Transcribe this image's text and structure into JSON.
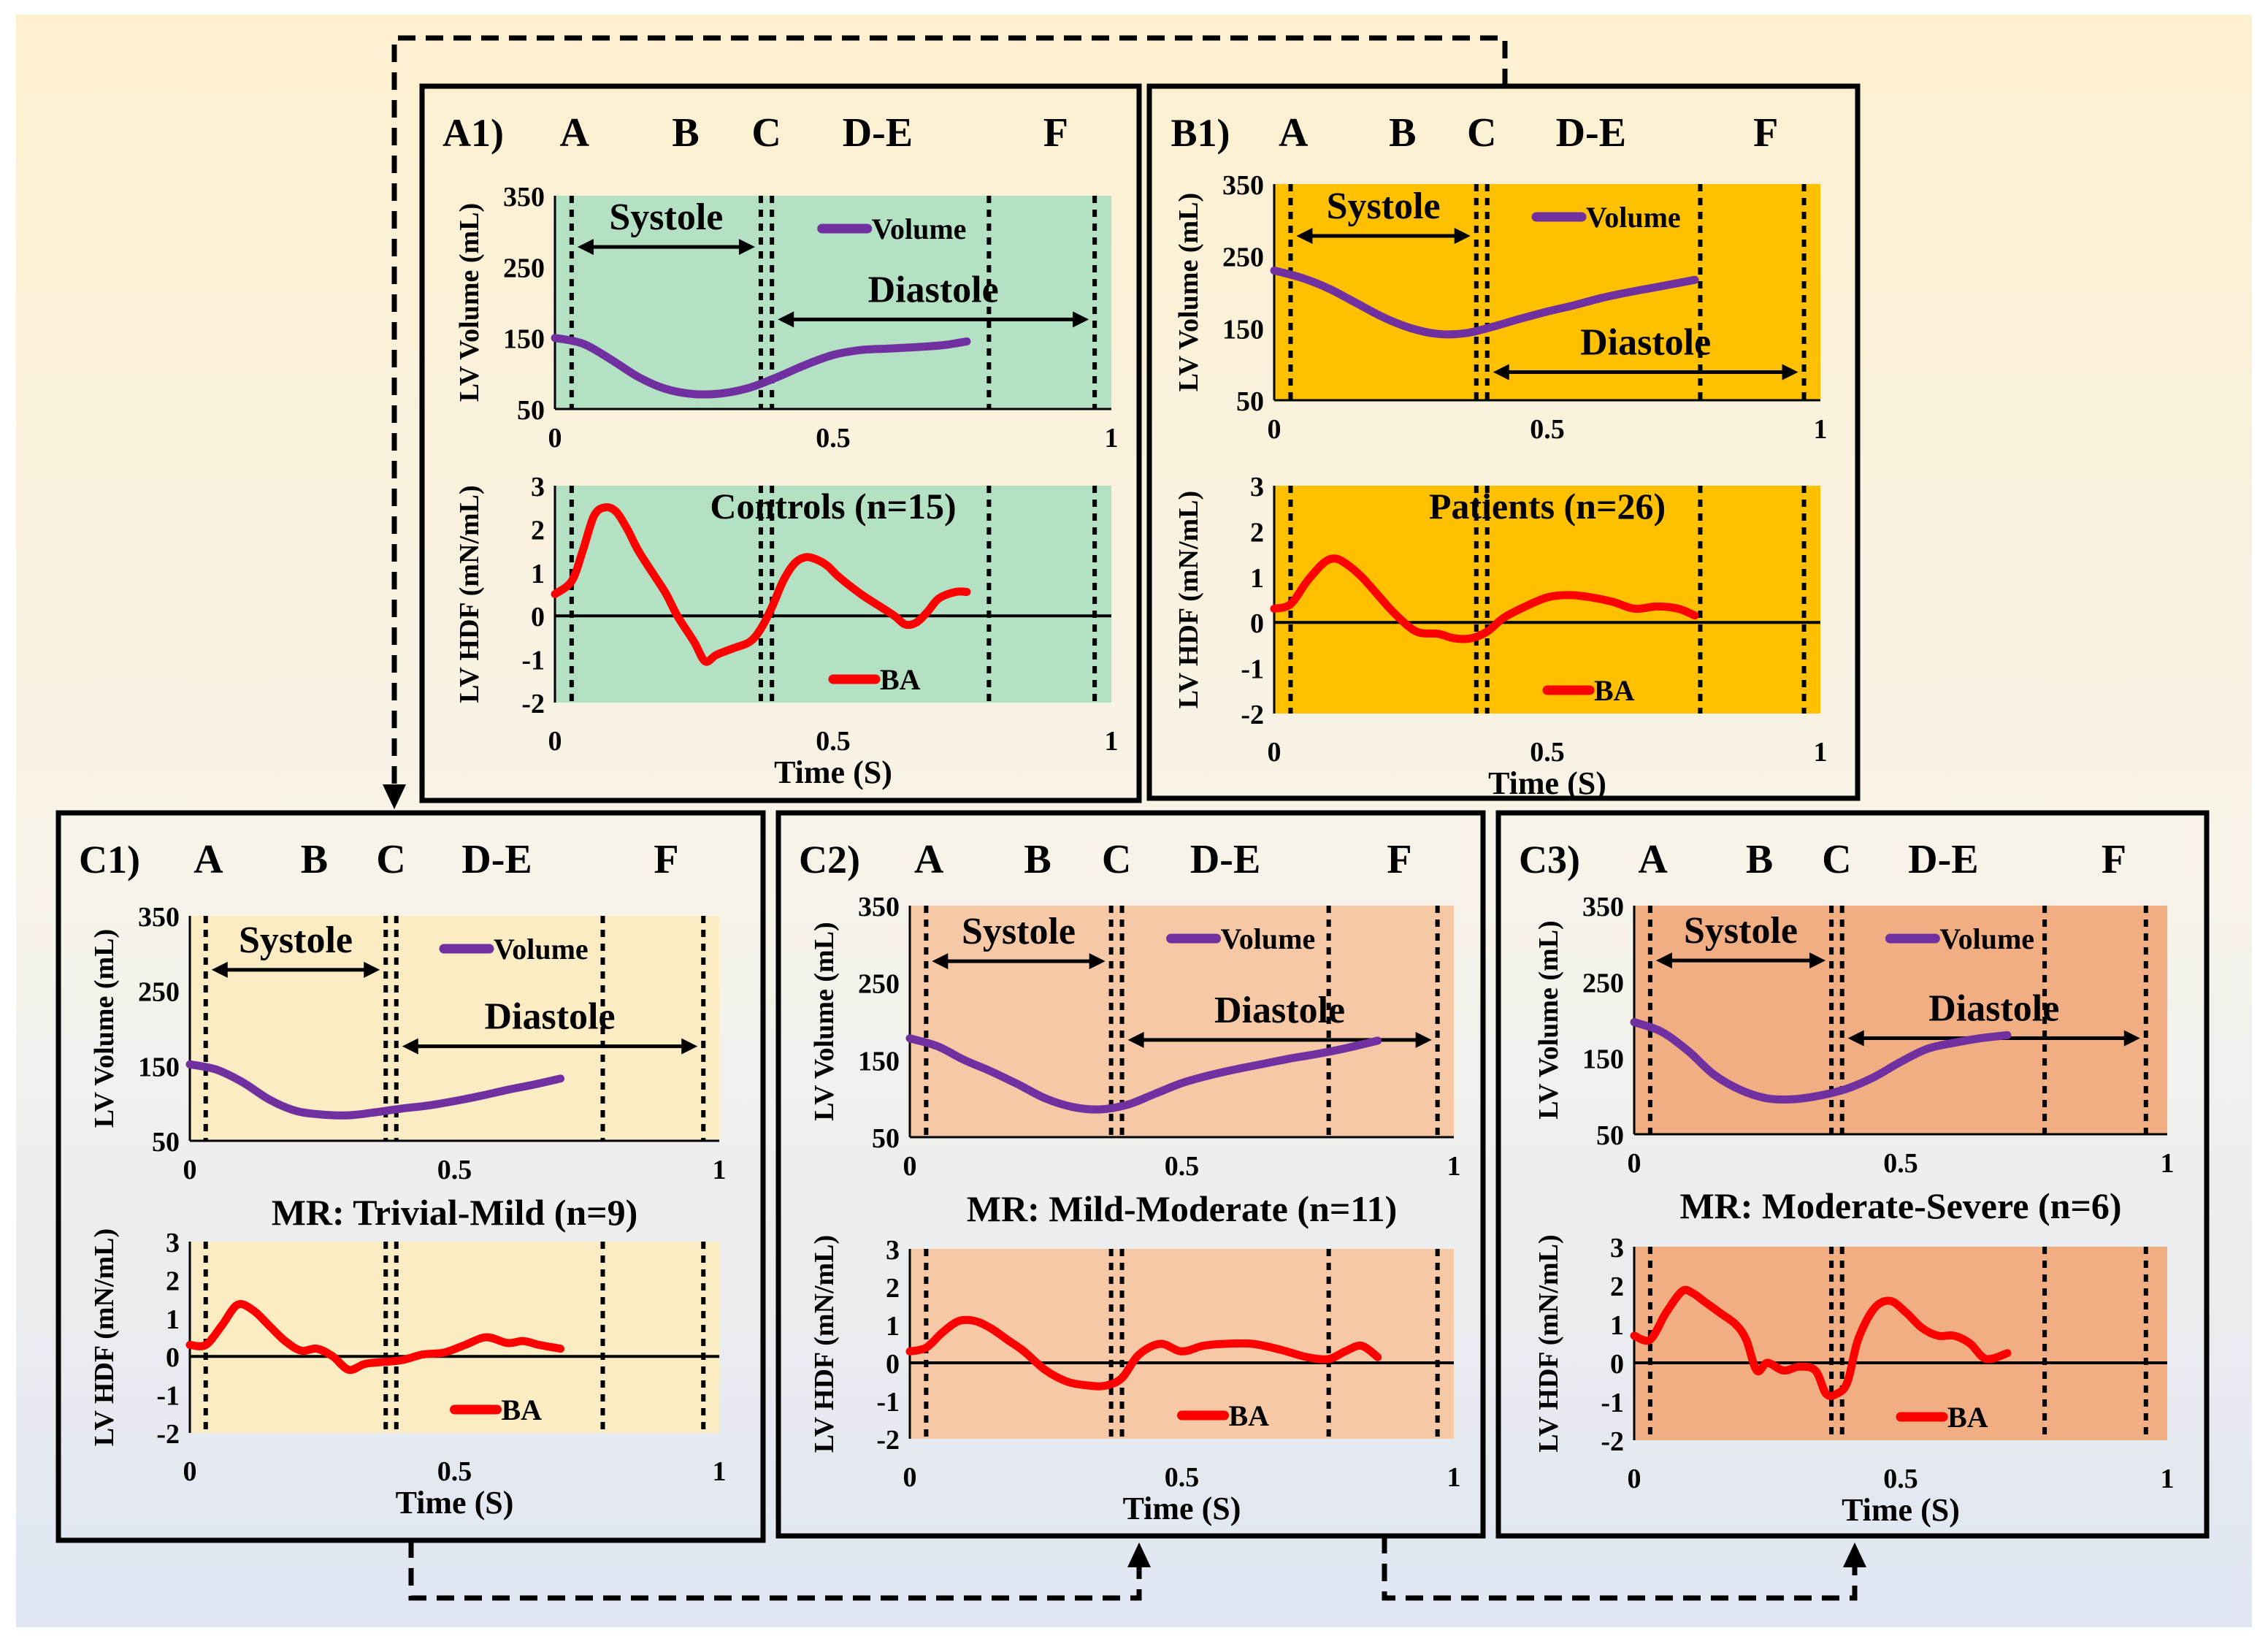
{
  "colors": {
    "bg_top": "#fdf0cf",
    "bg_mid": "#f7f3ea",
    "bg_bottom": "#dfe6f2",
    "volume_line": "#7030a0",
    "hdf_line": "#ff0000",
    "controls_fill": "#b4e0c3",
    "patients_fill": "#ffc000",
    "trivial_fill": "#fcecc4",
    "mild_fill": "#f6c8a6",
    "severe_fill": "#f0ae82"
  },
  "phase_labels": [
    "A",
    "B",
    "C",
    "D-E",
    "F"
  ],
  "common": {
    "volume_ylabel": "LV Volume (mL)",
    "hdf_ylabel": "LV HDF (mN/mL)",
    "xlabel": "Time (S)",
    "systole": "Systole",
    "diastole": "Diastole",
    "volume_legend": "Volume",
    "hdf_legend": "BA",
    "volume_yticks": [
      "350",
      "250",
      "150",
      "50"
    ],
    "hdf_yticks": [
      "3",
      "2",
      "1",
      "0",
      "-1",
      "-2"
    ],
    "xticks": [
      "0",
      "0.5",
      "1"
    ]
  },
  "chart_data": [
    {
      "id": "A1",
      "tag": "A1)",
      "group": "Controls (n=15)",
      "type": "line",
      "fill": "controls_fill",
      "xlim": [
        0,
        1
      ],
      "volume_ylim": [
        50,
        350
      ],
      "hdf_ylim": [
        -2,
        3
      ],
      "phase_lines": [
        0.03,
        0.37,
        0.39,
        0.78,
        0.97
      ],
      "volume": {
        "x": [
          0,
          0.05,
          0.1,
          0.15,
          0.2,
          0.25,
          0.3,
          0.35,
          0.4,
          0.45,
          0.5,
          0.55,
          0.6,
          0.65,
          0.7,
          0.74
        ],
        "y": [
          150,
          142,
          120,
          95,
          78,
          71,
          72,
          80,
          95,
          112,
          126,
          133,
          135,
          137,
          140,
          145
        ]
      },
      "hdf": {
        "x": [
          0,
          0.03,
          0.05,
          0.07,
          0.09,
          0.11,
          0.13,
          0.15,
          0.18,
          0.2,
          0.22,
          0.25,
          0.27,
          0.29,
          0.32,
          0.35,
          0.37,
          0.39,
          0.41,
          0.43,
          0.45,
          0.47,
          0.49,
          0.51,
          0.55,
          0.58,
          0.61,
          0.63,
          0.65,
          0.67,
          0.69,
          0.72,
          0.74
        ],
        "y": [
          0.5,
          0.8,
          1.5,
          2.3,
          2.5,
          2.4,
          2.0,
          1.5,
          0.9,
          0.5,
          0.0,
          -0.6,
          -1.05,
          -0.9,
          -0.75,
          -0.6,
          -0.3,
          0.2,
          0.8,
          1.2,
          1.35,
          1.3,
          1.15,
          0.9,
          0.5,
          0.25,
          0.0,
          -0.2,
          -0.15,
          0.1,
          0.4,
          0.55,
          0.55
        ]
      }
    },
    {
      "id": "B1",
      "tag": "B1)",
      "group": "Patients (n=26)",
      "type": "line",
      "fill": "patients_fill",
      "xlim": [
        0,
        1
      ],
      "volume_ylim": [
        50,
        350
      ],
      "hdf_ylim": [
        -2,
        3
      ],
      "phase_lines": [
        0.03,
        0.37,
        0.39,
        0.78,
        0.97
      ],
      "volume": {
        "x": [
          0,
          0.05,
          0.1,
          0.15,
          0.2,
          0.25,
          0.3,
          0.35,
          0.4,
          0.45,
          0.5,
          0.55,
          0.6,
          0.65,
          0.7,
          0.77
        ],
        "y": [
          230,
          220,
          205,
          185,
          165,
          150,
          142,
          143,
          152,
          163,
          173,
          182,
          192,
          200,
          207,
          217
        ]
      },
      "hdf": {
        "x": [
          0,
          0.03,
          0.06,
          0.09,
          0.11,
          0.13,
          0.16,
          0.19,
          0.22,
          0.26,
          0.3,
          0.33,
          0.36,
          0.39,
          0.42,
          0.46,
          0.5,
          0.54,
          0.58,
          0.62,
          0.66,
          0.7,
          0.74,
          0.77
        ],
        "y": [
          0.3,
          0.4,
          0.9,
          1.3,
          1.4,
          1.3,
          1.0,
          0.6,
          0.2,
          -0.2,
          -0.25,
          -0.35,
          -0.35,
          -0.2,
          0.1,
          0.35,
          0.55,
          0.6,
          0.55,
          0.45,
          0.3,
          0.35,
          0.3,
          0.15
        ]
      }
    },
    {
      "id": "C1",
      "tag": "C1)",
      "group": "MR: Trivial-Mild (n=9)",
      "type": "line",
      "fill": "trivial_fill",
      "xlim": [
        0,
        1
      ],
      "volume_ylim": [
        50,
        350
      ],
      "hdf_ylim": [
        -2,
        3
      ],
      "phase_lines": [
        0.03,
        0.37,
        0.39,
        0.78,
        0.97
      ],
      "volume": {
        "x": [
          0,
          0.05,
          0.1,
          0.15,
          0.2,
          0.25,
          0.3,
          0.35,
          0.4,
          0.45,
          0.5,
          0.55,
          0.6,
          0.65,
          0.7
        ],
        "y": [
          152,
          145,
          128,
          105,
          90,
          85,
          84,
          88,
          93,
          97,
          103,
          110,
          118,
          125,
          133
        ]
      },
      "hdf": {
        "x": [
          0,
          0.03,
          0.06,
          0.09,
          0.12,
          0.15,
          0.18,
          0.21,
          0.24,
          0.27,
          0.3,
          0.33,
          0.36,
          0.4,
          0.44,
          0.48,
          0.52,
          0.56,
          0.6,
          0.63,
          0.66,
          0.7
        ],
        "y": [
          0.3,
          0.3,
          0.8,
          1.35,
          1.2,
          0.8,
          0.4,
          0.15,
          0.2,
          0.0,
          -0.35,
          -0.2,
          -0.15,
          -0.1,
          0.05,
          0.1,
          0.3,
          0.5,
          0.35,
          0.4,
          0.3,
          0.2
        ]
      }
    },
    {
      "id": "C2",
      "tag": "C2)",
      "group": "MR: Mild-Moderate (n=11)",
      "type": "line",
      "fill": "mild_fill",
      "xlim": [
        0,
        1
      ],
      "volume_ylim": [
        50,
        350
      ],
      "hdf_ylim": [
        -2,
        3
      ],
      "phase_lines": [
        0.03,
        0.37,
        0.39,
        0.77,
        0.97
      ],
      "volume": {
        "x": [
          0,
          0.05,
          0.1,
          0.15,
          0.2,
          0.25,
          0.3,
          0.35,
          0.4,
          0.45,
          0.5,
          0.55,
          0.6,
          0.65,
          0.7,
          0.75,
          0.8,
          0.86
        ],
        "y": [
          178,
          168,
          150,
          135,
          118,
          100,
          89,
          86,
          92,
          106,
          120,
          130,
          138,
          145,
          152,
          158,
          165,
          175
        ]
      },
      "hdf": {
        "x": [
          0,
          0.03,
          0.06,
          0.09,
          0.12,
          0.15,
          0.18,
          0.21,
          0.25,
          0.29,
          0.33,
          0.36,
          0.39,
          0.42,
          0.46,
          0.5,
          0.54,
          0.58,
          0.63,
          0.68,
          0.73,
          0.77,
          0.8,
          0.83,
          0.86
        ],
        "y": [
          0.3,
          0.4,
          0.8,
          1.1,
          1.1,
          0.9,
          0.6,
          0.3,
          -0.2,
          -0.5,
          -0.6,
          -0.6,
          -0.4,
          0.2,
          0.5,
          0.3,
          0.45,
          0.5,
          0.5,
          0.35,
          0.15,
          0.1,
          0.3,
          0.45,
          0.15
        ]
      }
    },
    {
      "id": "C3",
      "tag": "C3)",
      "group": "MR: Moderate-Severe (n=6)",
      "type": "line",
      "fill": "severe_fill",
      "xlim": [
        0,
        1
      ],
      "volume_ylim": [
        50,
        350
      ],
      "hdf_ylim": [
        -2,
        3
      ],
      "phase_lines": [
        0.03,
        0.37,
        0.39,
        0.77,
        0.96
      ],
      "volume": {
        "x": [
          0,
          0.05,
          0.1,
          0.15,
          0.2,
          0.25,
          0.3,
          0.35,
          0.4,
          0.45,
          0.5,
          0.55,
          0.6,
          0.65,
          0.7
        ],
        "y": [
          197,
          185,
          160,
          128,
          108,
          97,
          96,
          101,
          110,
          125,
          145,
          162,
          170,
          176,
          180
        ]
      },
      "hdf": {
        "x": [
          0,
          0.03,
          0.06,
          0.09,
          0.11,
          0.13,
          0.16,
          0.19,
          0.21,
          0.23,
          0.25,
          0.28,
          0.31,
          0.34,
          0.36,
          0.38,
          0.4,
          0.42,
          0.45,
          0.48,
          0.51,
          0.54,
          0.57,
          0.6,
          0.63,
          0.66,
          0.7
        ],
        "y": [
          0.7,
          0.6,
          1.3,
          1.85,
          1.8,
          1.6,
          1.3,
          1.0,
          0.6,
          -0.2,
          0.0,
          -0.2,
          -0.1,
          -0.2,
          -0.8,
          -0.8,
          -0.5,
          0.6,
          1.4,
          1.6,
          1.3,
          0.9,
          0.7,
          0.7,
          0.5,
          0.1,
          0.25
        ]
      }
    }
  ]
}
